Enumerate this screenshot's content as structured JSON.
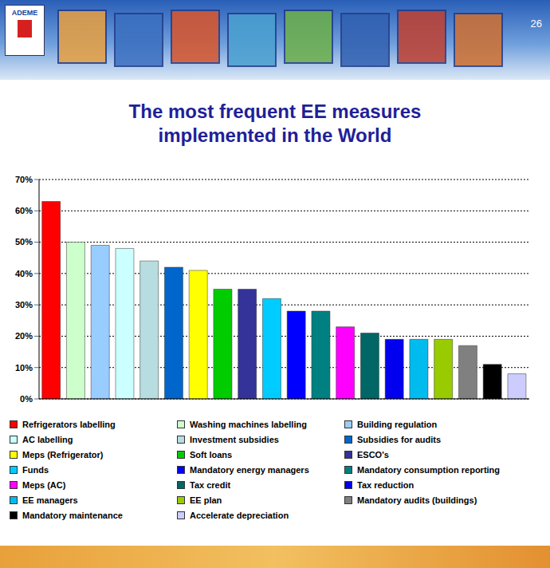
{
  "chart_data": {
    "type": "bar",
    "title": "The most frequent EE measures implemented in the World",
    "annotations": [
      "ADEME",
      "26"
    ],
    "categories": [
      "Refrigerators labelling",
      "Washing machines labelling",
      "Building regulation",
      "AC labelling",
      "Investment subsidies",
      "Subsidies for audits",
      "Meps (Refrigerator)",
      "Soft loans",
      "ESCO's",
      "Funds",
      "Mandatory energy managers",
      "Mandatory consumption reporting",
      "Meps (AC)",
      "Tax credit",
      "Tax reduction",
      "EE managers",
      "EE plan",
      "Mandatory audits (buildings)",
      "Mandatory maintenance",
      "Accelerate depreciation"
    ],
    "values": [
      63,
      50,
      49,
      48,
      44,
      42,
      41,
      35,
      35,
      32,
      28,
      28,
      23,
      21,
      19,
      19,
      19,
      17,
      11,
      8
    ],
    "colors": [
      "#ff0000",
      "#ccffcc",
      "#99ccff",
      "#ccffff",
      "#b7dde0",
      "#0066cc",
      "#ffff00",
      "#00cc00",
      "#333399",
      "#00ccff",
      "#0000ff",
      "#008080",
      "#ff00ff",
      "#006666",
      "#0000ee",
      "#00bbee",
      "#99cc00",
      "#808080",
      "#000000",
      "#ccccff"
    ],
    "ylim": [
      0,
      70
    ],
    "yticks": [
      {
        "value": 0,
        "label": "0%"
      },
      {
        "value": 10,
        "label": "10%"
      },
      {
        "value": 20,
        "label": "20%"
      },
      {
        "value": 30,
        "label": "30%"
      },
      {
        "value": 40,
        "label": "40%"
      },
      {
        "value": 50,
        "label": "50%"
      },
      {
        "value": 60,
        "label": "60%"
      },
      {
        "value": 70,
        "label": "70%"
      }
    ],
    "grid": true,
    "tick_labels": "y",
    "legend": "bottom"
  }
}
